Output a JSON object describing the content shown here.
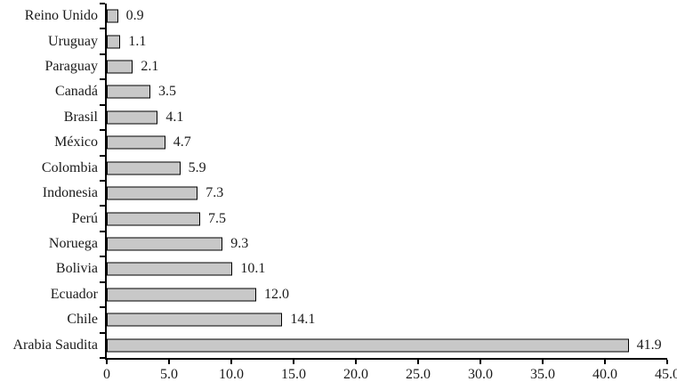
{
  "chart_data": {
    "type": "bar",
    "orientation": "horizontal",
    "title": "",
    "xlabel": "",
    "ylabel": "",
    "grid": false,
    "legend": null,
    "xlim": [
      0,
      45
    ],
    "categories": [
      "Reino Unido",
      "Uruguay",
      "Paraguay",
      "Canadá",
      "Brasil",
      "México",
      "Colombia",
      "Indonesia",
      "Perú",
      "Noruega",
      "Bolivia",
      "Ecuador",
      "Chile",
      "Arabia Saudita"
    ],
    "values": [
      0.9,
      1.1,
      2.1,
      3.5,
      4.1,
      4.7,
      5.9,
      7.3,
      7.5,
      9.3,
      10.1,
      12.0,
      14.1,
      41.9
    ],
    "value_labels": [
      "0.9",
      "1.1",
      "2.1",
      "3.5",
      "4.1",
      "4.7",
      "5.9",
      "7.3",
      "7.5",
      "9.3",
      "10.1",
      "12.0",
      "14.1",
      "41.9"
    ],
    "x_tick_values": [
      0,
      5,
      10,
      15,
      20,
      25,
      30,
      35,
      40,
      45
    ],
    "x_tick_labels": [
      "0",
      "5.0",
      "10.0",
      "15.0",
      "20.0",
      "25.0",
      "30.0",
      "35.0",
      "40.0",
      "45.0"
    ],
    "colors": {
      "bar_fill": "#c8c8c8",
      "bar_border": "#000000",
      "axis": "#000000",
      "text": "#1a1a1a",
      "background": "#ffffff"
    }
  }
}
